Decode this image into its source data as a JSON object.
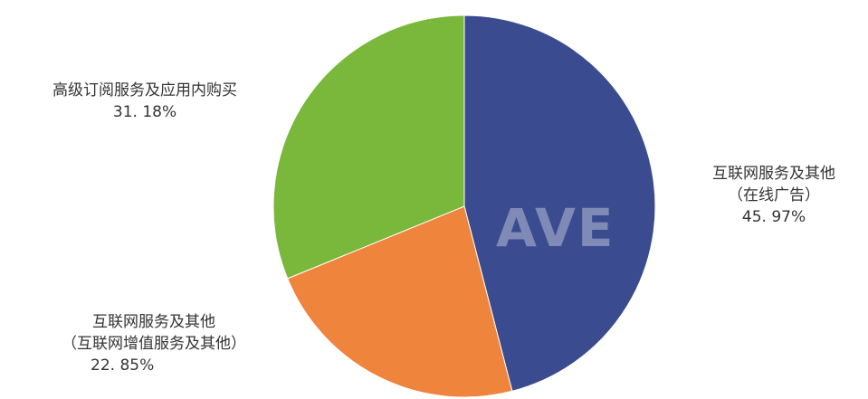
{
  "chart_data": {
    "type": "pie",
    "watermark": "AVE",
    "slices": [
      {
        "label_line1": "互联网服务及其他",
        "label_line2": "（在线广告）",
        "value_text": "45. 97%",
        "value": 45.97,
        "color": "#3a4b8f"
      },
      {
        "label_line1": "互联网服务及其他",
        "label_line2": "（互联网增值服务及其他）",
        "value_text": "22. 85%",
        "value": 22.85,
        "color": "#ef843c"
      },
      {
        "label_line1": "高级订阅服务及应用内购买",
        "label_line2": "",
        "value_text": "31. 18%",
        "value": 31.18,
        "color": "#79b83a"
      }
    ]
  }
}
